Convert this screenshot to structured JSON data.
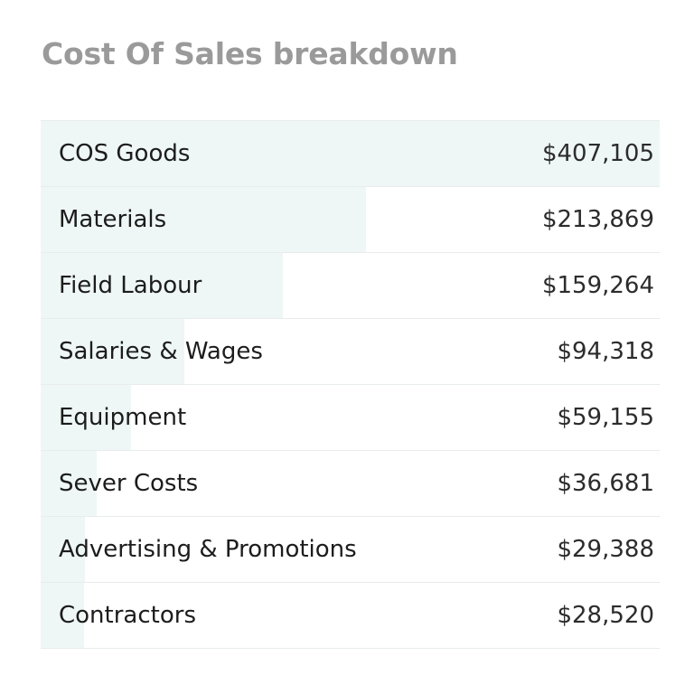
{
  "chart_data": {
    "type": "bar",
    "orientation": "horizontal",
    "title": "Cost Of Sales breakdown",
    "categories": [
      "COS Goods",
      "Materials",
      "Field Labour",
      "Salaries & Wages",
      "Equipment",
      "Sever Costs",
      "Advertising & Promotions",
      "Contractors"
    ],
    "values": [
      407105,
      213869,
      159264,
      94318,
      59155,
      36681,
      29388,
      28520
    ],
    "value_labels": [
      "$407,105",
      "$213,869",
      "$159,264",
      "$94,318",
      "$59,155",
      "$36,681",
      "$29,388",
      "$28,520"
    ],
    "bar_color": "#eef7f5",
    "grid": false
  }
}
